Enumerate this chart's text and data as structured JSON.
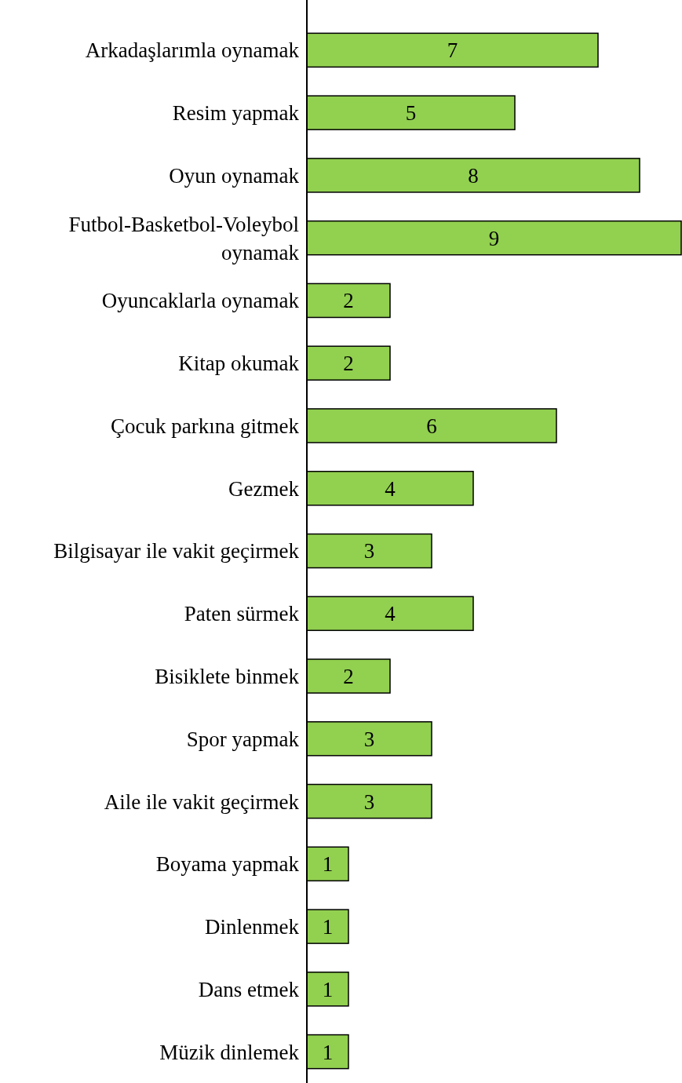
{
  "chart_data": {
    "type": "bar",
    "orientation": "horizontal",
    "data_labels": true,
    "color": "#92d050",
    "categories": [
      "Arkadaşlarımla oynamak",
      "Resim yapmak",
      "Oyun oynamak",
      "Futbol-Basketbol-Voleybol oynamak",
      "Oyuncaklarla oynamak",
      "Kitap okumak",
      "Çocuk parkına gitmek",
      "Gezmek",
      "Bilgisayar ile vakit geçirmek",
      "Paten sürmek",
      "Bisiklete binmek",
      "Spor yapmak",
      "Aile ile vakit geçirmek",
      "Boyama yapmak",
      "Dinlenmek",
      "Dans etmek",
      "Müzik dinlemek"
    ],
    "values": [
      7,
      5,
      8,
      9,
      2,
      2,
      6,
      4,
      3,
      4,
      2,
      3,
      3,
      1,
      1,
      1,
      1
    ]
  }
}
